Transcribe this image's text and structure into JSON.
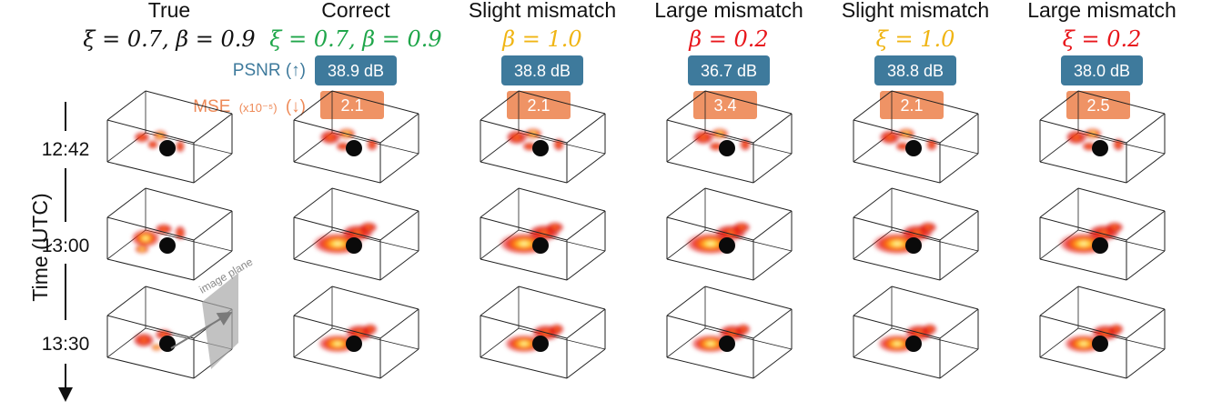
{
  "columns": [
    {
      "title": "True",
      "param": "ξ = 0.7, β = 0.9",
      "param_color": "#111111",
      "psnr": "",
      "mse": ""
    },
    {
      "title": "Correct",
      "param": "ξ = 0.7, β = 0.9",
      "param_color": "#1fa64a",
      "psnr": "38.9 dB",
      "mse": "2.1"
    },
    {
      "title": "Slight mismatch",
      "param": "β = 1.0",
      "param_color": "#f0b514",
      "psnr": "38.8 dB",
      "mse": "2.1"
    },
    {
      "title": "Large mismatch",
      "param": "β = 0.2",
      "param_color": "#e8161b",
      "psnr": "36.7 dB",
      "mse": "3.4"
    },
    {
      "title": "Slight mismatch",
      "param": "ξ = 1.0",
      "param_color": "#f0b514",
      "psnr": "38.8 dB",
      "mse": "2.1"
    },
    {
      "title": "Large mismatch",
      "param": "ξ = 0.2",
      "param_color": "#e8161b",
      "psnr": "38.0 dB",
      "mse": "2.5"
    }
  ],
  "metrics": {
    "psnr_label": "PSNR (↑)",
    "mse_label_main": "MSE",
    "mse_label_scale": "(x10⁻⁵)",
    "mse_label_arrow": "(↓)",
    "psnr_color": "#3e7a9c",
    "mse_color": "#ee8a58"
  },
  "time_axis": {
    "label": "Time (UTC)",
    "times": [
      "12:42",
      "13:00",
      "13:30"
    ]
  },
  "image_plane_label": "image plane"
}
